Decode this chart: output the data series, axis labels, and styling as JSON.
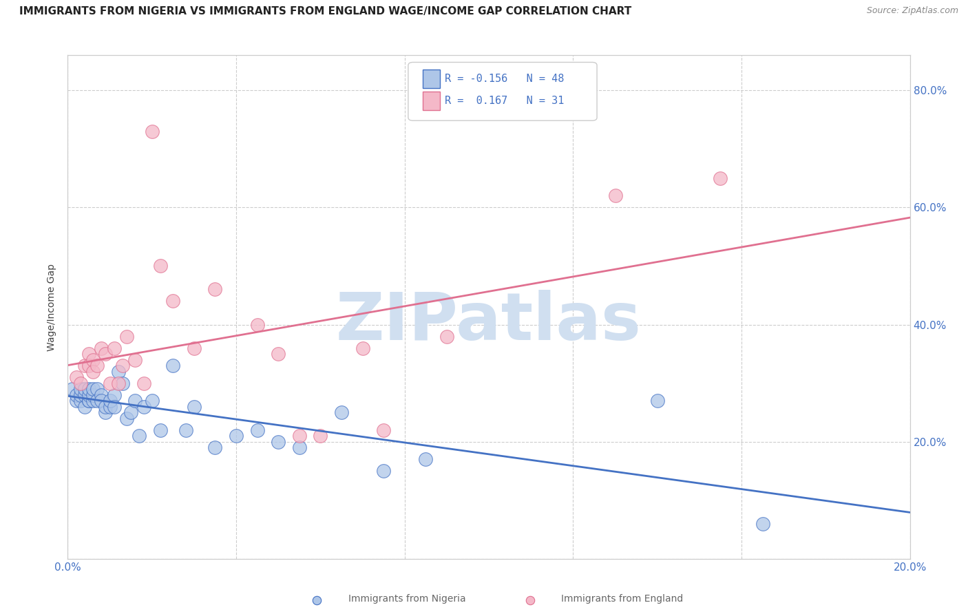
{
  "title": "IMMIGRANTS FROM NIGERIA VS IMMIGRANTS FROM ENGLAND WAGE/INCOME GAP CORRELATION CHART",
  "source": "Source: ZipAtlas.com",
  "ylabel": "Wage/Income Gap",
  "xlim": [
    0.0,
    0.2
  ],
  "ylim": [
    0.0,
    0.86
  ],
  "xticks": [
    0.0,
    0.04,
    0.08,
    0.12,
    0.16,
    0.2
  ],
  "xtick_labels": [
    "0.0%",
    "",
    "",
    "",
    "",
    "20.0%"
  ],
  "yticks": [
    0.0,
    0.2,
    0.4,
    0.6,
    0.8
  ],
  "ytick_labels_right": [
    "",
    "20.0%",
    "40.0%",
    "60.0%",
    "80.0%"
  ],
  "nigeria_color": "#aec6e8",
  "england_color": "#f4b8c8",
  "nigeria_line_color": "#4472c4",
  "england_line_color": "#e07090",
  "nigeria_R": -0.156,
  "nigeria_N": 48,
  "england_R": 0.167,
  "england_N": 31,
  "watermark": "ZIPatlas",
  "watermark_color": "#d0dff0",
  "nigeria_x": [
    0.001,
    0.002,
    0.002,
    0.003,
    0.003,
    0.003,
    0.004,
    0.004,
    0.004,
    0.005,
    0.005,
    0.005,
    0.005,
    0.006,
    0.006,
    0.006,
    0.007,
    0.007,
    0.008,
    0.008,
    0.009,
    0.009,
    0.01,
    0.01,
    0.011,
    0.011,
    0.012,
    0.013,
    0.014,
    0.015,
    0.016,
    0.017,
    0.018,
    0.02,
    0.022,
    0.025,
    0.028,
    0.03,
    0.035,
    0.04,
    0.045,
    0.05,
    0.055,
    0.065,
    0.075,
    0.085,
    0.14,
    0.165
  ],
  "nigeria_y": [
    0.29,
    0.27,
    0.28,
    0.27,
    0.28,
    0.29,
    0.26,
    0.28,
    0.29,
    0.27,
    0.27,
    0.28,
    0.29,
    0.27,
    0.28,
    0.29,
    0.29,
    0.27,
    0.28,
    0.27,
    0.25,
    0.26,
    0.26,
    0.27,
    0.28,
    0.26,
    0.32,
    0.3,
    0.24,
    0.25,
    0.27,
    0.21,
    0.26,
    0.27,
    0.22,
    0.33,
    0.22,
    0.26,
    0.19,
    0.21,
    0.22,
    0.2,
    0.19,
    0.25,
    0.15,
    0.17,
    0.27,
    0.06
  ],
  "england_x": [
    0.002,
    0.003,
    0.004,
    0.005,
    0.005,
    0.006,
    0.006,
    0.007,
    0.008,
    0.009,
    0.01,
    0.011,
    0.012,
    0.013,
    0.014,
    0.016,
    0.018,
    0.02,
    0.022,
    0.025,
    0.03,
    0.035,
    0.045,
    0.05,
    0.055,
    0.06,
    0.07,
    0.075,
    0.09,
    0.13,
    0.155
  ],
  "england_y": [
    0.31,
    0.3,
    0.33,
    0.35,
    0.33,
    0.34,
    0.32,
    0.33,
    0.36,
    0.35,
    0.3,
    0.36,
    0.3,
    0.33,
    0.38,
    0.34,
    0.3,
    0.73,
    0.5,
    0.44,
    0.36,
    0.46,
    0.4,
    0.35,
    0.21,
    0.21,
    0.36,
    0.22,
    0.38,
    0.62,
    0.65
  ],
  "background_color": "#ffffff",
  "grid_color": "#cccccc",
  "title_fontsize": 11,
  "axis_label_fontsize": 10,
  "tick_fontsize": 11
}
